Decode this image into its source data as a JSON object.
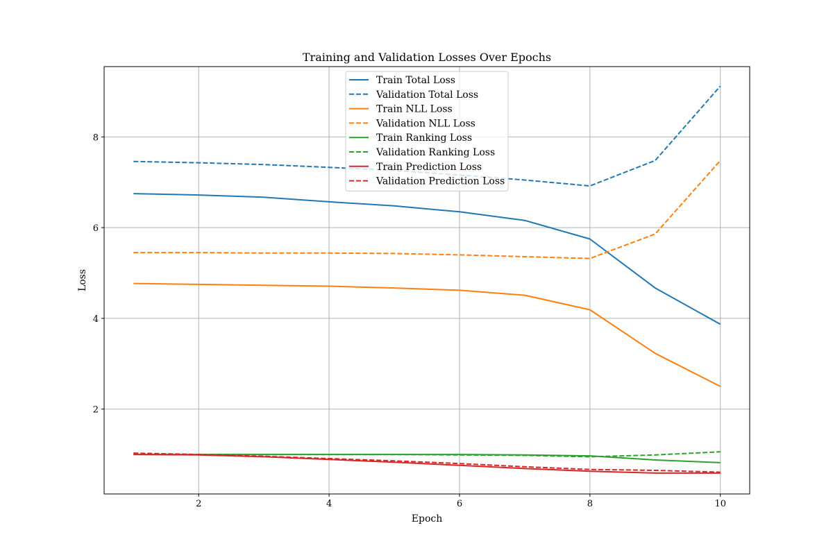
{
  "chart_data": {
    "type": "line",
    "title": "Training and Validation Losses Over Epochs",
    "xlabel": "Epoch",
    "ylabel": "Loss",
    "x": [
      1,
      2,
      3,
      4,
      5,
      6,
      7,
      8,
      9,
      10
    ],
    "xlim": [
      0.55,
      10.45
    ],
    "ylim": [
      0.13,
      9.55
    ],
    "xticks": [
      2,
      4,
      6,
      8,
      10
    ],
    "yticks": [
      2,
      4,
      6,
      8
    ],
    "grid": true,
    "legend_position": "top-center",
    "series": [
      {
        "name": "Train Total Loss",
        "color": "#1f77b4",
        "dash": false,
        "values": [
          6.75,
          6.72,
          6.67,
          6.57,
          6.48,
          6.35,
          6.16,
          5.75,
          4.67,
          3.87
        ]
      },
      {
        "name": "Validation Total Loss",
        "color": "#1f77b4",
        "dash": true,
        "values": [
          7.46,
          7.43,
          7.39,
          7.33,
          7.26,
          7.16,
          7.05,
          6.92,
          7.48,
          9.12
        ]
      },
      {
        "name": "Train NLL Loss",
        "color": "#ff7f0e",
        "dash": false,
        "values": [
          4.77,
          4.75,
          4.73,
          4.71,
          4.67,
          4.62,
          4.51,
          4.19,
          3.23,
          2.5
        ]
      },
      {
        "name": "Validation NLL Loss",
        "color": "#ff7f0e",
        "dash": true,
        "values": [
          5.45,
          5.45,
          5.44,
          5.44,
          5.43,
          5.4,
          5.36,
          5.32,
          5.86,
          7.48
        ]
      },
      {
        "name": "Train Ranking Loss",
        "color": "#2ca02c",
        "dash": false,
        "values": [
          1.0,
          1.0,
          1.0,
          1.0,
          1.0,
          1.0,
          0.99,
          0.97,
          0.88,
          0.82
        ]
      },
      {
        "name": "Validation Ranking Loss",
        "color": "#2ca02c",
        "dash": true,
        "values": [
          1.02,
          1.0,
          1.0,
          1.0,
          1.0,
          0.99,
          0.98,
          0.95,
          0.99,
          1.06
        ]
      },
      {
        "name": "Train Prediction Loss",
        "color": "#d62728",
        "dash": false,
        "values": [
          1.0,
          0.99,
          0.95,
          0.89,
          0.83,
          0.76,
          0.69,
          0.63,
          0.59,
          0.59
        ]
      },
      {
        "name": "Validation Prediction Loss",
        "color": "#d62728",
        "dash": true,
        "values": [
          1.03,
          1.0,
          0.96,
          0.91,
          0.86,
          0.8,
          0.73,
          0.67,
          0.65,
          0.61
        ]
      }
    ]
  }
}
